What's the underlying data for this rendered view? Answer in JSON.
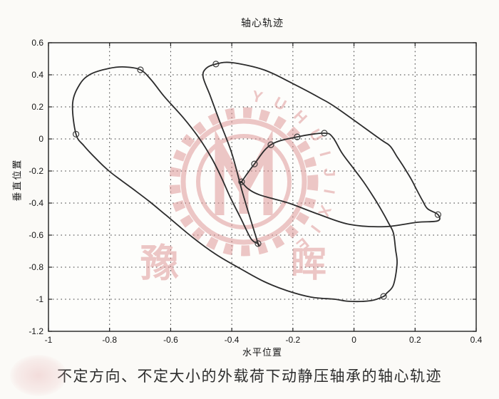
{
  "figure": {
    "title": "轴心轨迹",
    "xlabel": "水平位置",
    "ylabel": "垂直位置",
    "caption": "不定方向、不定大小的外载荷下动静压轴承的轴心轨迹"
  },
  "chart_data": {
    "type": "line",
    "title": "轴心轨迹",
    "xlabel": "水平位置",
    "ylabel": "垂直位置",
    "xlim": [
      -1,
      0.4
    ],
    "ylim": [
      -1.2,
      0.6
    ],
    "xticks": [
      -1,
      -0.8,
      -0.6,
      -0.4,
      -0.2,
      0,
      0.2,
      0.4
    ],
    "xticklabels": [
      "-1",
      "-0.8",
      "-0.6",
      "-0.4",
      "-0.2",
      "0",
      "0.2",
      "0.4"
    ],
    "yticks": [
      0.6,
      0.4,
      0.2,
      0,
      -0.2,
      -0.4,
      -0.6,
      -0.8,
      -1,
      -1.2
    ],
    "yticklabels": [
      "0.6",
      "0.4",
      "0.2",
      "0",
      "-0.2",
      "-0.4",
      "-0.6",
      "-0.8",
      "-1",
      "-1.2"
    ],
    "grid": true,
    "legend": null,
    "series": [
      {
        "name": "shaft-center-orbit",
        "closed": true,
        "points": [
          [
            -0.91,
            0.03
          ],
          [
            -0.921,
            0.222
          ],
          [
            -0.897,
            0.342
          ],
          [
            -0.862,
            0.404
          ],
          [
            -0.802,
            0.44
          ],
          [
            -0.75,
            0.449
          ],
          [
            -0.699,
            0.431
          ],
          [
            -0.664,
            0.369
          ],
          [
            -0.622,
            0.267
          ],
          [
            -0.559,
            0.133
          ],
          [
            -0.505,
            0.0
          ],
          [
            -0.466,
            -0.12
          ],
          [
            -0.435,
            -0.236
          ],
          [
            -0.405,
            -0.364
          ],
          [
            -0.372,
            -0.489
          ],
          [
            -0.337,
            -0.622
          ],
          [
            -0.314,
            -0.653
          ],
          [
            -0.314,
            -0.653
          ],
          [
            -0.337,
            -0.511
          ],
          [
            -0.365,
            -0.333
          ],
          [
            -0.4,
            -0.089
          ],
          [
            -0.44,
            0.111
          ],
          [
            -0.47,
            0.267
          ],
          [
            -0.494,
            0.387
          ],
          [
            -0.484,
            0.44
          ],
          [
            -0.452,
            0.467
          ],
          [
            -0.4,
            0.476
          ],
          [
            -0.295,
            0.431
          ],
          [
            -0.202,
            0.347
          ],
          [
            -0.109,
            0.253
          ],
          [
            -0.055,
            0.191
          ],
          [
            0.085,
            0.0
          ],
          [
            0.118,
            -0.044
          ],
          [
            0.141,
            -0.111
          ],
          [
            0.164,
            -0.178
          ],
          [
            0.188,
            -0.253
          ],
          [
            0.206,
            -0.32
          ],
          [
            0.225,
            -0.387
          ],
          [
            0.241,
            -0.436
          ],
          [
            0.275,
            -0.472
          ],
          [
            0.274,
            -0.511
          ],
          [
            0.206,
            -0.52
          ],
          [
            0.101,
            -0.547
          ],
          [
            -0.015,
            -0.533
          ],
          [
            -0.12,
            -0.467
          ],
          [
            -0.214,
            -0.4
          ],
          [
            -0.307,
            -0.35
          ],
          [
            -0.347,
            -0.31
          ],
          [
            -0.368,
            -0.267
          ],
          [
            -0.368,
            -0.267
          ],
          [
            -0.326,
            -0.156
          ],
          [
            -0.272,
            -0.036
          ],
          [
            -0.186,
            0.013
          ],
          [
            -0.097,
            0.036
          ],
          [
            -0.069,
            0.009
          ],
          [
            -0.039,
            -0.089
          ],
          [
            -0.004,
            -0.178
          ],
          [
            0.031,
            -0.267
          ],
          [
            0.062,
            -0.356
          ],
          [
            0.09,
            -0.444
          ],
          [
            0.113,
            -0.524
          ],
          [
            0.129,
            -0.587
          ],
          [
            0.136,
            -0.689
          ],
          [
            0.141,
            -0.778
          ],
          [
            0.129,
            -0.911
          ],
          [
            0.106,
            -0.964
          ],
          [
            0.097,
            -0.982
          ],
          [
            0.055,
            -1.009
          ],
          [
            -0.015,
            -1.013
          ],
          [
            -0.062,
            -1.0
          ],
          [
            -0.139,
            -0.987
          ],
          [
            -0.218,
            -0.947
          ],
          [
            -0.295,
            -0.889
          ],
          [
            -0.372,
            -0.809
          ],
          [
            -0.452,
            -0.72
          ],
          [
            -0.529,
            -0.613
          ],
          [
            -0.615,
            -0.476
          ],
          [
            -0.669,
            -0.391
          ],
          [
            -0.715,
            -0.324
          ],
          [
            -0.762,
            -0.258
          ],
          [
            -0.802,
            -0.2
          ],
          [
            -0.844,
            -0.124
          ],
          [
            -0.883,
            -0.044
          ]
        ]
      }
    ],
    "markers": [
      [
        -0.91,
        0.03
      ],
      [
        -0.699,
        0.431
      ],
      [
        -0.452,
        0.467
      ],
      [
        -0.368,
        -0.267
      ],
      [
        -0.326,
        -0.156
      ],
      [
        -0.272,
        -0.036
      ],
      [
        -0.186,
        0.013
      ],
      [
        -0.097,
        0.036
      ],
      [
        -0.314,
        -0.653
      ],
      [
        0.275,
        -0.472
      ],
      [
        0.097,
        -0.982
      ]
    ]
  },
  "watermark": {
    "ring_text": "YUHUIJIXIE",
    "char_left": "豫",
    "char_right": "晖",
    "color": "#dd9090"
  },
  "colors": {
    "curve": "#2b2b2b",
    "grid": "#3c3c3c",
    "marker": "#3a3a3a",
    "axis_box": "#1f1f1f",
    "background": "#fbfaf7",
    "plot_background": "#fdfdfb",
    "text": "#161616"
  }
}
